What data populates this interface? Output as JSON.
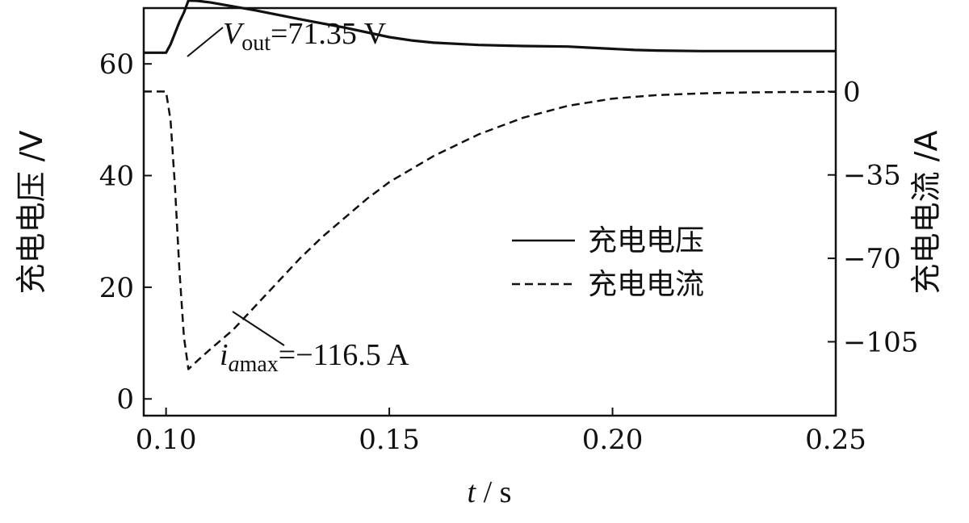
{
  "chart_data": {
    "type": "line",
    "title": "",
    "xlabel_var": "t",
    "xlabel_unit": "s",
    "ylabel_left": "充电电压 /V",
    "ylabel_right": "充电电流 /A",
    "xlim": [
      0.095,
      0.25
    ],
    "ylim_left": [
      -3,
      70
    ],
    "ylim_right": [
      -136,
      35
    ],
    "x_ticks": [
      0.1,
      0.15,
      0.2,
      0.25
    ],
    "x_tick_labels": [
      "0.10",
      "0.15",
      "0.20",
      "0.25"
    ],
    "y_left_ticks": [
      0,
      20,
      40,
      60
    ],
    "y_left_tick_labels": [
      "0",
      "20",
      "40",
      "60"
    ],
    "y_right_ticks": [
      0,
      -35,
      -70,
      -105
    ],
    "y_right_tick_labels": [
      "0",
      "−35",
      "−70",
      "−105"
    ],
    "grid": false,
    "legend_position": "center-right",
    "series": [
      {
        "name": "充电电压",
        "axis": "left",
        "style": "solid",
        "x": [
          0.095,
          0.1,
          0.101,
          0.102,
          0.103,
          0.104,
          0.105,
          0.107,
          0.11,
          0.115,
          0.12,
          0.13,
          0.14,
          0.15,
          0.155,
          0.16,
          0.17,
          0.18,
          0.19,
          0.195,
          0.2,
          0.205,
          0.21,
          0.22,
          0.23,
          0.24,
          0.25
        ],
        "y": [
          62.0,
          62.0,
          63.5,
          65.5,
          67.5,
          69.2,
          71.35,
          71.3,
          71.0,
          70.3,
          69.6,
          68.0,
          66.5,
          64.8,
          64.2,
          63.8,
          63.4,
          63.2,
          63.1,
          62.9,
          62.7,
          62.5,
          62.4,
          62.3,
          62.3,
          62.3,
          62.3
        ]
      },
      {
        "name": "充电电流",
        "axis": "right",
        "style": "dashed",
        "x": [
          0.095,
          0.1,
          0.101,
          0.102,
          0.103,
          0.104,
          0.105,
          0.107,
          0.11,
          0.115,
          0.12,
          0.125,
          0.13,
          0.135,
          0.14,
          0.145,
          0.15,
          0.16,
          0.17,
          0.18,
          0.19,
          0.2,
          0.21,
          0.22,
          0.23,
          0.24,
          0.25
        ],
        "y": [
          0,
          0,
          -12,
          -40,
          -75,
          -103,
          -116.5,
          -113,
          -108,
          -100,
          -90,
          -80,
          -70,
          -61,
          -53,
          -45,
          -38,
          -27,
          -18,
          -11,
          -6,
          -3,
          -1.5,
          -0.8,
          -0.4,
          -0.2,
          -0.1
        ]
      }
    ],
    "annotations": [
      {
        "var": "V",
        "sub": "out",
        "text": "=71.35 V",
        "x": 0.105,
        "y": 71.35,
        "axis": "left"
      },
      {
        "var": "i",
        "sub_italic": "a",
        "sub": "max",
        "text": "=−116.5 A",
        "x": 0.114,
        "y": -98.0,
        "axis": "right"
      }
    ]
  }
}
